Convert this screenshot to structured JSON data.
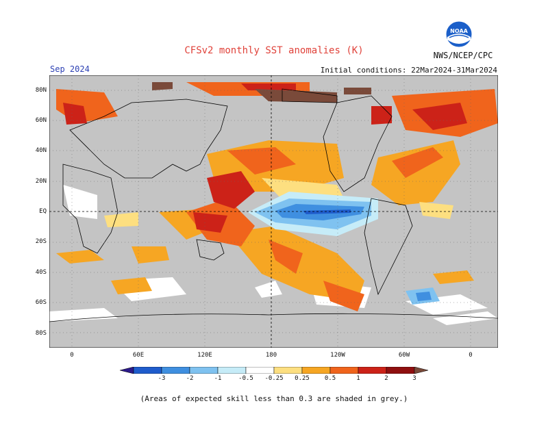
{
  "title": "CFSv2 monthly SST anomalies (K)",
  "credit": "NWS/NCEP/CPC",
  "valid_month": "Sep 2024",
  "initial_conditions": "Initial conditions: 22Mar2024-31Mar2024",
  "logo_text": "NOAA",
  "footnote": "(Areas of expected skill less than 0.3 are shaded in grey.)",
  "lat_labels": [
    "80N",
    "60N",
    "40N",
    "20N",
    "EQ",
    "20S",
    "40S",
    "60S",
    "80S"
  ],
  "lon_labels": [
    "0",
    "60E",
    "120E",
    "180",
    "120W",
    "60W",
    "0"
  ],
  "colorbar": {
    "labels": [
      "-3",
      "-2",
      "-1",
      "-0.5",
      "-0.25",
      "0.25",
      "0.5",
      "1",
      "2",
      "3"
    ],
    "colors": [
      "#2c1a8a",
      "#1f5ccc",
      "#3f8fe0",
      "#7fc2f0",
      "#c6ecf8",
      "#ffffff",
      "#fddf80",
      "#f6a623",
      "#f0641c",
      "#cc2218",
      "#8f0f0f",
      "#7a4a3a"
    ]
  },
  "colors": {
    "land": "#c0c0c0",
    "ocean_grey": "#c4c4c4",
    "title": "#e0423a",
    "valid_month": "#2b3fb3"
  }
}
